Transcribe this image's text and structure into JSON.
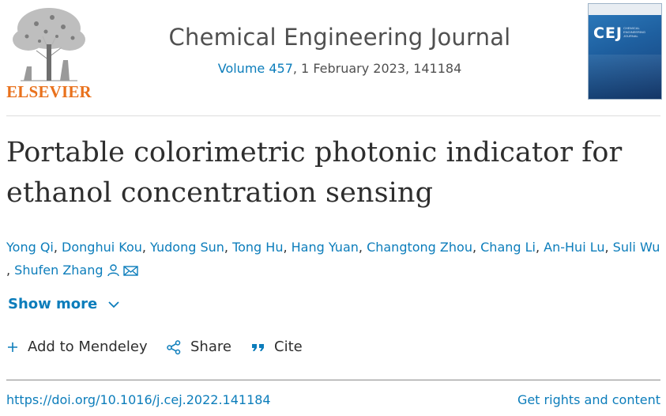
{
  "publisher": {
    "logo_text": "ELSEVIER",
    "brand_color": "#e9711c"
  },
  "journal": {
    "title": "Chemical Engineering Journal",
    "volume_link": "Volume 457",
    "issue_rest": ", 1 February 2023, 141184",
    "cover_logo": "CEJ",
    "cover_subtitle": "Chemical Engineering Journal"
  },
  "article": {
    "title": "Portable colorimetric photonic indicator for ethanol concentration sensing",
    "authors": [
      {
        "name": "Yong Qi"
      },
      {
        "name": "Donghui Kou"
      },
      {
        "name": "Yudong Sun"
      },
      {
        "name": "Tong Hu"
      },
      {
        "name": "Hang Yuan"
      },
      {
        "name": "Changtong Zhou"
      },
      {
        "name": "Chang Li"
      },
      {
        "name": "An-Hui Lu"
      },
      {
        "name": "Suli Wu"
      },
      {
        "name": "Shufen Zhang"
      }
    ],
    "corresponding_author_icons": [
      "person-icon",
      "envelope-icon"
    ]
  },
  "ui": {
    "show_more": "Show more",
    "actions": {
      "mendeley": "Add to Mendeley",
      "share": "Share",
      "cite": "Cite"
    },
    "doi": "https://doi.org/10.1016/j.cej.2022.141184",
    "rights": "Get rights and content"
  },
  "colors": {
    "link": "#0c7dbb",
    "text": "#2e2e2e"
  }
}
